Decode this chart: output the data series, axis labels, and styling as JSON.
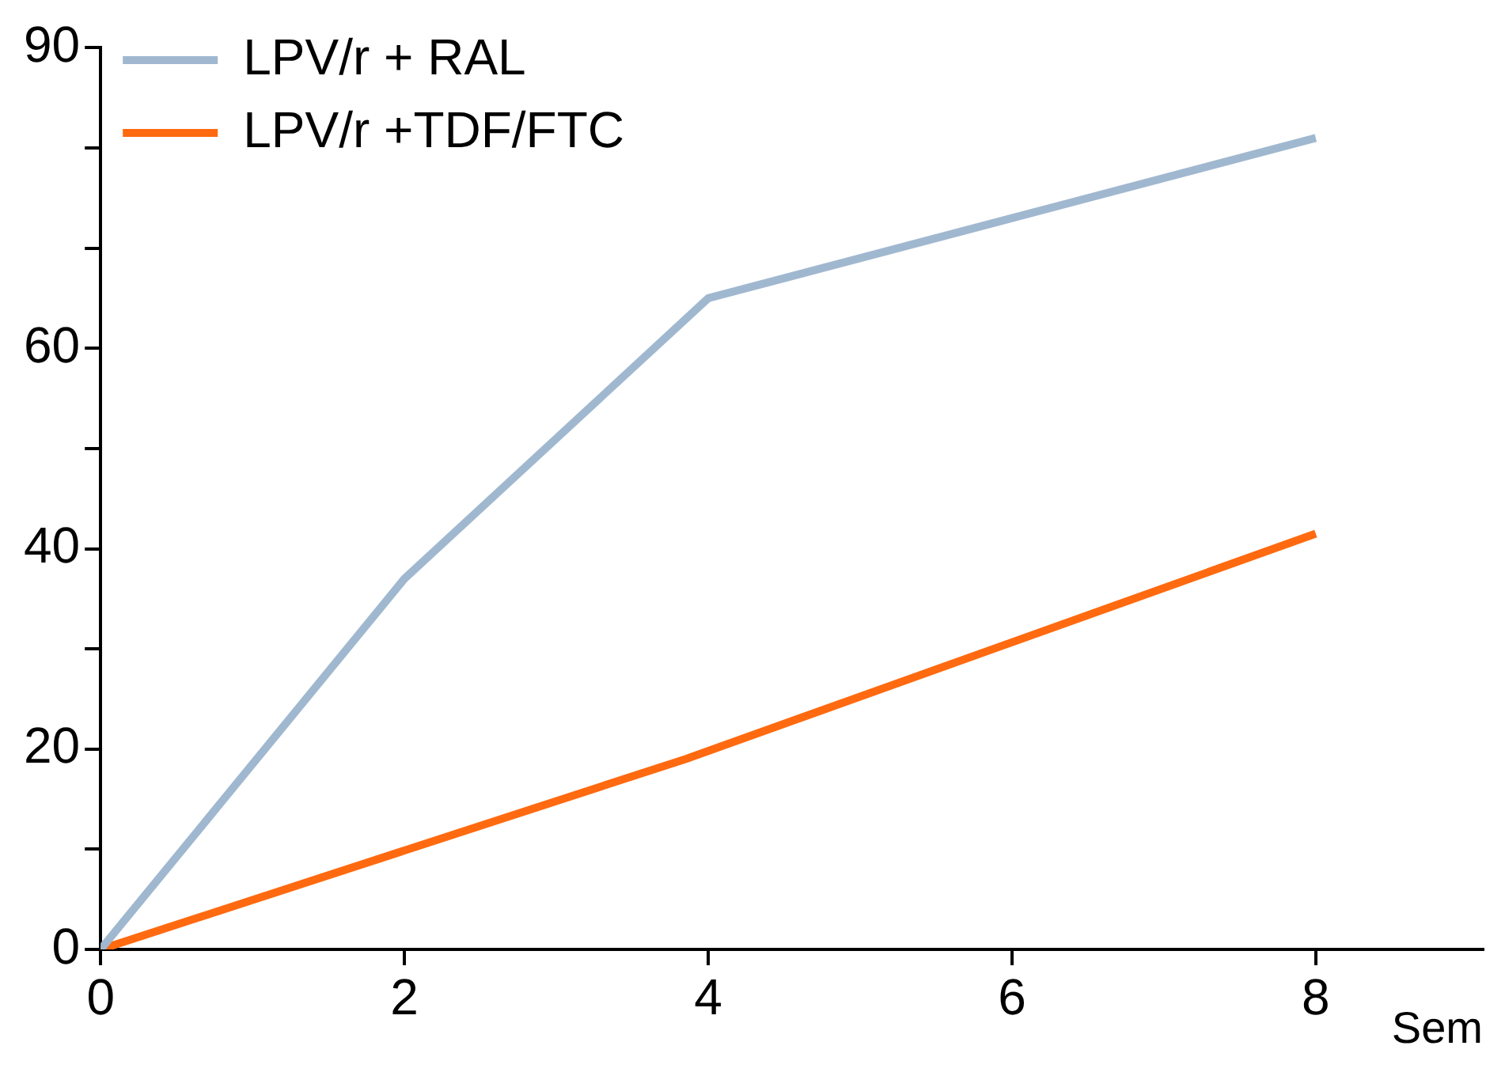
{
  "chart_data": {
    "type": "line",
    "xlabel": "Sem",
    "xlim": [
      0,
      9.1
    ],
    "xticks": [
      0,
      2,
      4,
      6,
      8
    ],
    "ylim": [
      0,
      90
    ],
    "yticks": [
      0,
      {
        "value": 10,
        "label": null
      },
      20,
      {
        "value": 30,
        "label": null
      },
      40,
      {
        "value": 50,
        "label": null
      },
      60,
      {
        "value": 70,
        "label": null
      },
      {
        "value": 80,
        "label": null
      },
      90
    ],
    "series": [
      {
        "name": "LPV/r + RAL",
        "color": "#a0b8cf",
        "x": [
          0,
          2,
          4,
          8
        ],
        "values": [
          0,
          37,
          65,
          81
        ]
      },
      {
        "name": "LPV/r +TDF/FTC",
        "color": "#ff6a10",
        "x": [
          0,
          3.85,
          8
        ],
        "values": [
          0,
          19,
          41.5
        ]
      }
    ],
    "grid": false,
    "legend": "top left",
    "marker": "none",
    "line_style": "solid"
  }
}
